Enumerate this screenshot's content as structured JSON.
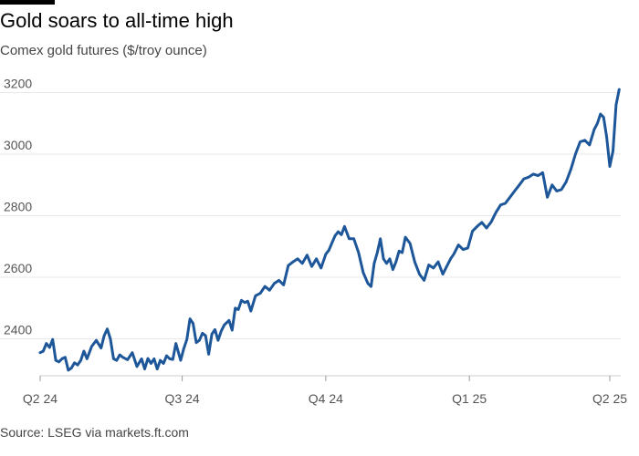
{
  "header": {
    "title": "Gold soars to all-time high",
    "subtitle": "Comex gold futures ($/troy ounce)"
  },
  "footer": {
    "source": "Source: LSEG via markets.ft.com"
  },
  "colors": {
    "line": "#1d5799",
    "grid": "#e8e8e8",
    "axis": "#cccccc"
  },
  "chart_data": {
    "type": "line",
    "title": "Gold soars to all-time high",
    "subtitle": "Comex gold futures ($/troy ounce)",
    "xlabel": "",
    "ylabel": "",
    "ylim": [
      2280,
      3240
    ],
    "yticks": [
      2400,
      2600,
      2800,
      3000,
      3200
    ],
    "xlim": [
      "2024-04-01",
      "2025-04-08"
    ],
    "xticks": [
      {
        "date": "2024-04-01",
        "label": "Q2 24"
      },
      {
        "date": "2024-07-01",
        "label": "Q3 24"
      },
      {
        "date": "2024-10-01",
        "label": "Q4 24"
      },
      {
        "date": "2025-01-01",
        "label": "Q1 25"
      },
      {
        "date": "2025-04-01",
        "label": "Q2 25"
      }
    ],
    "grid": true,
    "legend": "none",
    "series": [
      {
        "x": [
          "2024-04-01",
          "2024-04-03",
          "2024-04-05",
          "2024-04-07",
          "2024-04-09",
          "2024-04-11",
          "2024-04-13",
          "2024-04-15",
          "2024-04-17",
          "2024-04-19",
          "2024-04-21",
          "2024-04-23",
          "2024-04-25",
          "2024-04-27",
          "2024-04-29",
          "2024-05-01",
          "2024-05-04",
          "2024-05-07",
          "2024-05-10",
          "2024-05-12",
          "2024-05-14",
          "2024-05-16",
          "2024-05-18",
          "2024-05-20",
          "2024-05-22",
          "2024-05-24",
          "2024-05-27",
          "2024-05-30",
          "2024-06-02",
          "2024-06-05",
          "2024-06-07",
          "2024-06-09",
          "2024-06-11",
          "2024-06-13",
          "2024-06-15",
          "2024-06-17",
          "2024-06-19",
          "2024-06-21",
          "2024-06-23",
          "2024-06-25",
          "2024-06-27",
          "2024-06-30",
          "2024-07-02",
          "2024-07-04",
          "2024-07-06",
          "2024-07-08",
          "2024-07-10",
          "2024-07-12",
          "2024-07-14",
          "2024-07-16",
          "2024-07-18",
          "2024-07-20",
          "2024-07-22",
          "2024-07-24",
          "2024-07-26",
          "2024-07-28",
          "2024-07-31",
          "2024-08-02",
          "2024-08-04",
          "2024-08-06",
          "2024-08-08",
          "2024-08-10",
          "2024-08-12",
          "2024-08-14",
          "2024-08-17",
          "2024-08-20",
          "2024-08-23",
          "2024-08-26",
          "2024-08-29",
          "2024-09-01",
          "2024-09-04",
          "2024-09-07",
          "2024-09-10",
          "2024-09-13",
          "2024-09-16",
          "2024-09-19",
          "2024-09-22",
          "2024-09-25",
          "2024-09-28",
          "2024-10-01",
          "2024-10-03",
          "2024-10-05",
          "2024-10-07",
          "2024-10-09",
          "2024-10-11",
          "2024-10-13",
          "2024-10-16",
          "2024-10-19",
          "2024-10-22",
          "2024-10-25",
          "2024-10-28",
          "2024-10-30",
          "2024-11-01",
          "2024-11-03",
          "2024-11-05",
          "2024-11-07",
          "2024-11-09",
          "2024-11-11",
          "2024-11-13",
          "2024-11-15",
          "2024-11-17",
          "2024-11-19",
          "2024-11-21",
          "2024-11-24",
          "2024-11-27",
          "2024-11-30",
          "2024-12-03",
          "2024-12-06",
          "2024-12-09",
          "2024-12-12",
          "2024-12-15",
          "2024-12-18",
          "2024-12-20",
          "2024-12-22",
          "2024-12-25",
          "2024-12-28",
          "2024-12-31",
          "2025-01-03",
          "2025-01-06",
          "2025-01-09",
          "2025-01-12",
          "2025-01-15",
          "2025-01-18",
          "2025-01-21",
          "2025-01-24",
          "2025-01-27",
          "2025-01-30",
          "2025-02-02",
          "2025-02-05",
          "2025-02-08",
          "2025-02-11",
          "2025-02-14",
          "2025-02-17",
          "2025-02-20",
          "2025-02-23",
          "2025-02-26",
          "2025-03-01",
          "2025-03-04",
          "2025-03-07",
          "2025-03-10",
          "2025-03-13",
          "2025-03-16",
          "2025-03-19",
          "2025-03-22",
          "2025-03-24",
          "2025-03-26",
          "2025-03-28",
          "2025-03-30",
          "2025-04-01",
          "2025-04-03",
          "2025-04-05",
          "2025-04-07"
        ],
        "y": [
          2355,
          2360,
          2385,
          2372,
          2398,
          2330,
          2325,
          2335,
          2340,
          2298,
          2305,
          2322,
          2315,
          2330,
          2360,
          2335,
          2375,
          2395,
          2370,
          2410,
          2432,
          2400,
          2335,
          2330,
          2348,
          2340,
          2332,
          2355,
          2310,
          2335,
          2302,
          2336,
          2320,
          2335,
          2302,
          2330,
          2320,
          2345,
          2335,
          2333,
          2385,
          2330,
          2368,
          2398,
          2465,
          2450,
          2388,
          2395,
          2418,
          2410,
          2350,
          2415,
          2430,
          2395,
          2425,
          2445,
          2460,
          2428,
          2500,
          2495,
          2525,
          2518,
          2522,
          2490,
          2540,
          2548,
          2570,
          2558,
          2580,
          2590,
          2575,
          2638,
          2650,
          2660,
          2645,
          2672,
          2635,
          2660,
          2630,
          2675,
          2688,
          2712,
          2735,
          2748,
          2738,
          2765,
          2725,
          2725,
          2680,
          2615,
          2580,
          2570,
          2645,
          2680,
          2725,
          2660,
          2645,
          2660,
          2625,
          2650,
          2685,
          2680,
          2730,
          2710,
          2650,
          2610,
          2590,
          2640,
          2630,
          2650,
          2610,
          2640,
          2660,
          2675,
          2705,
          2690,
          2695,
          2750,
          2765,
          2778,
          2760,
          2780,
          2810,
          2835,
          2840,
          2860,
          2880,
          2900,
          2920,
          2925,
          2935,
          2930,
          2940,
          2860,
          2900,
          2880,
          2885,
          2910,
          2950,
          3000,
          3040,
          3045,
          3030,
          3080,
          3100,
          3130,
          3120,
          3055,
          2960,
          3010,
          3160,
          3210
        ],
        "y_note": ""
      }
    ]
  }
}
